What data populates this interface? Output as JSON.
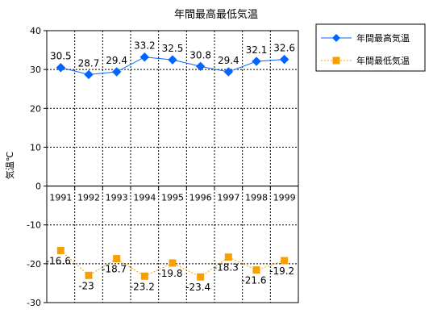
{
  "chart_data": {
    "type": "line",
    "title": "年間最高最低気温",
    "ylabel": "気温℃",
    "xlabel": "",
    "categories": [
      "1991",
      "1992",
      "1993",
      "1994",
      "1995",
      "1996",
      "1997",
      "1998",
      "1999"
    ],
    "ylim": [
      -30,
      40
    ],
    "yticks": [
      40,
      30,
      20,
      10,
      0,
      -10,
      -20,
      -30
    ],
    "grid": true,
    "legend_position": "top-right",
    "series": [
      {
        "name": "年間最高気温",
        "values": [
          30.5,
          28.7,
          29.4,
          33.2,
          32.5,
          30.8,
          29.4,
          32.1,
          32.6
        ],
        "labels": [
          "30.5",
          "28.7",
          "29.4",
          "33.2",
          "32.5",
          "30.8",
          "29.4",
          "32.1",
          "32.6"
        ],
        "color": "#0066ff",
        "marker": "diamond",
        "line_style": "solid"
      },
      {
        "name": "年間最低気温",
        "values": [
          -16.6,
          -23,
          -18.7,
          -23.2,
          -19.8,
          -23.4,
          -18.3,
          -21.6,
          -19.2
        ],
        "labels": [
          "-16.6",
          "-23",
          "-18.7",
          "-23.2",
          "-19.8",
          "-23.4",
          "-18.3",
          "-21.6",
          "-19.2"
        ],
        "color": "#f5a000",
        "marker": "square",
        "line_style": "dotted"
      }
    ]
  }
}
